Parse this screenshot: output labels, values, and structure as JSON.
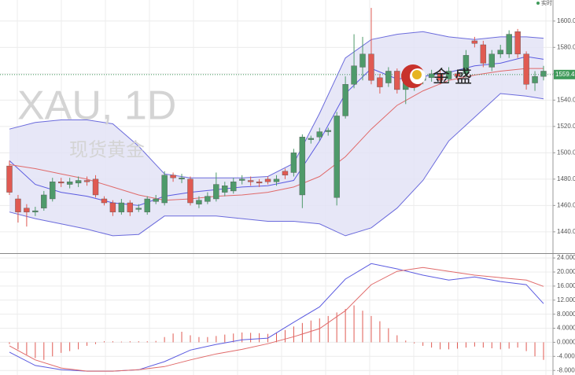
{
  "chart_data": [
    {
      "type": "candlestick",
      "title": "XAU, 1D",
      "subtitle": "现货黄金",
      "logo_text": "金 盛",
      "status": "实时",
      "up_color": "#4e9a6a",
      "down_color": "#e05a52",
      "open": [
        1490,
        1465,
        1458,
        1455,
        1458,
        1465,
        1478,
        1476,
        1477,
        1479,
        1480,
        1465,
        1462,
        1455,
        1462,
        1457,
        1455,
        1463,
        1462,
        1483,
        1480,
        1480,
        1461,
        1463,
        1465,
        1470,
        1471,
        1479,
        1479,
        1478,
        1480,
        1478,
        1486,
        1485,
        1468,
        1510,
        1512,
        1516,
        1466,
        1528,
        1552,
        1565,
        1575,
        1557,
        1553,
        1562,
        1548,
        1550,
        1555,
        1557,
        1560,
        1556,
        1560,
        1560,
        1585,
        1582,
        1565,
        1575,
        1575,
        1592,
        1575,
        1553,
        1558
      ],
      "high": [
        1494,
        1468,
        1461,
        1459,
        1471,
        1481,
        1481,
        1481,
        1482,
        1482,
        1483,
        1467,
        1464,
        1465,
        1464,
        1461,
        1467,
        1468,
        1486,
        1485,
        1484,
        1482,
        1467,
        1470,
        1485,
        1478,
        1481,
        1483,
        1482,
        1480,
        1482,
        1483,
        1488,
        1503,
        1514,
        1513,
        1519,
        1519,
        1531,
        1558,
        1590,
        1588,
        1610,
        1560,
        1565,
        1564,
        1558,
        1560,
        1562,
        1563,
        1563,
        1565,
        1562,
        1578,
        1588,
        1585,
        1578,
        1582,
        1593,
        1594,
        1577,
        1562,
        1566
      ],
      "low": [
        1468,
        1447,
        1444,
        1452,
        1456,
        1463,
        1474,
        1473,
        1474,
        1475,
        1466,
        1460,
        1452,
        1453,
        1452,
        1455,
        1453,
        1461,
        1460,
        1478,
        1477,
        1460,
        1458,
        1461,
        1463,
        1467,
        1469,
        1476,
        1475,
        1474,
        1476,
        1475,
        1480,
        1482,
        1458,
        1507,
        1509,
        1513,
        1460,
        1526,
        1549,
        1555,
        1552,
        1545,
        1550,
        1545,
        1537,
        1547,
        1552,
        1554,
        1552,
        1553,
        1555,
        1557,
        1580,
        1565,
        1562,
        1572,
        1572,
        1572,
        1548,
        1547,
        1555
      ],
      "close": [
        1470,
        1455,
        1455,
        1456,
        1468,
        1478,
        1477,
        1478,
        1479,
        1478,
        1468,
        1462,
        1455,
        1462,
        1455,
        1458,
        1465,
        1465,
        1483,
        1481,
        1481,
        1462,
        1464,
        1467,
        1476,
        1475,
        1478,
        1480,
        1478,
        1477,
        1478,
        1480,
        1483,
        1500,
        1512,
        1511,
        1516,
        1517,
        1528,
        1552,
        1566,
        1575,
        1555,
        1550,
        1562,
        1548,
        1555,
        1556,
        1558,
        1560,
        1555,
        1562,
        1558,
        1574,
        1583,
        1568,
        1575,
        1578,
        1590,
        1575,
        1552,
        1558,
        1562
      ],
      "band": {
        "color": "#6b6bdc",
        "fill": "#e3e3f6",
        "x": [
          0,
          3,
          6,
          9,
          12,
          15,
          18,
          21,
          24,
          27,
          30,
          33,
          36,
          39,
          42,
          45,
          48,
          51,
          54,
          57,
          60,
          62
        ],
        "upper": [
          1518,
          1523,
          1525,
          1525,
          1522,
          1505,
          1484,
          1481,
          1481,
          1481,
          1482,
          1492,
          1530,
          1572,
          1586,
          1590,
          1592,
          1588,
          1586,
          1588,
          1588,
          1587
        ],
        "lower": [
          1455,
          1450,
          1446,
          1442,
          1437,
          1438,
          1452,
          1452,
          1452,
          1450,
          1448,
          1448,
          1446,
          1437,
          1443,
          1458,
          1479,
          1509,
          1527,
          1545,
          1543,
          1541
        ]
      },
      "lines": [
        {
          "color": "#5b5be0",
          "x": [
            0,
            3,
            6,
            9,
            12,
            15,
            18,
            21,
            24,
            27,
            30,
            33,
            36,
            39,
            42,
            45,
            48,
            51,
            54,
            57,
            60,
            62
          ],
          "values": [
            1494,
            1476,
            1470,
            1467,
            1462,
            1460,
            1467,
            1470,
            1472,
            1474,
            1475,
            1479,
            1509,
            1545,
            1564,
            1556,
            1558,
            1561,
            1566,
            1568,
            1573,
            1571
          ]
        },
        {
          "color": "#e06a6a",
          "x": [
            0,
            3,
            6,
            9,
            12,
            15,
            18,
            21,
            24,
            27,
            30,
            33,
            36,
            39,
            42,
            45,
            48,
            51,
            54,
            57,
            60,
            62
          ],
          "values": [
            1491,
            1488,
            1484,
            1480,
            1474,
            1468,
            1464,
            1465,
            1467,
            1468,
            1470,
            1474,
            1482,
            1497,
            1518,
            1536,
            1547,
            1555,
            1559,
            1562,
            1564,
            1564
          ]
        }
      ],
      "last_price": {
        "value": 1559.4,
        "label": "1559.4",
        "color": "#3f9a5a"
      },
      "ylim": [
        1425,
        1616
      ],
      "yticks": [
        {
          "value": 1440,
          "label": "1440.0"
        },
        {
          "value": 1460,
          "label": "1460.0"
        },
        {
          "value": 1480,
          "label": "1480.0"
        },
        {
          "value": 1500,
          "label": "1500.0"
        },
        {
          "value": 1520,
          "label": "1520.0"
        },
        {
          "value": 1540,
          "label": "1540.0"
        },
        {
          "value": 1560,
          "label": "1560.0"
        },
        {
          "value": 1580,
          "label": "1580.0"
        },
        {
          "value": 1600,
          "label": "1600.0"
        }
      ],
      "grid": true
    },
    {
      "type": "macd",
      "hist_color": "#e05a52",
      "histogram": [
        -0.5,
        -2,
        -3.5,
        -4.5,
        -5,
        -4,
        -3,
        -2.5,
        -2,
        -1,
        -0.5,
        0.3,
        0.3,
        0.2,
        0.3,
        0.3,
        0.3,
        0.4,
        1.5,
        2.5,
        3,
        2,
        1.5,
        1.5,
        1.8,
        2.2,
        2.5,
        2.8,
        2.7,
        2.6,
        2.4,
        2.8,
        3.5,
        4.5,
        5.5,
        6.2,
        6.8,
        7.5,
        8.5,
        9.5,
        10.5,
        9,
        7.5,
        6,
        4,
        2,
        0.5,
        -0.3,
        -1,
        -1.5,
        -2,
        -2,
        -1.8,
        -1.5,
        -1.2,
        -1.5,
        -1.7,
        -2,
        -1.8,
        -1.5,
        -2.5,
        -4,
        -5
      ],
      "series": [
        {
          "color": "#5b5be0",
          "x": [
            0,
            3,
            6,
            9,
            12,
            15,
            18,
            21,
            24,
            27,
            30,
            33,
            36,
            39,
            42,
            45,
            48,
            51,
            54,
            57,
            60,
            62
          ],
          "values": [
            -2.8,
            -6.6,
            -7.8,
            -8.2,
            -8.2,
            -7.8,
            -5.5,
            -2.2,
            -0.6,
            0.7,
            1.2,
            5.7,
            10.1,
            18,
            22.4,
            20.9,
            19.1,
            17.7,
            18.6,
            17.3,
            16.4,
            11
          ]
        },
        {
          "color": "#e06a6a",
          "x": [
            0,
            3,
            6,
            9,
            12,
            15,
            18,
            21,
            24,
            27,
            30,
            33,
            36,
            39,
            42,
            45,
            48,
            51,
            54,
            57,
            60,
            62
          ],
          "values": [
            -1,
            -5,
            -7.3,
            -8.2,
            -8.2,
            -7.8,
            -6.9,
            -5,
            -3.3,
            -2,
            -0.4,
            1.6,
            3.9,
            9,
            16.4,
            20.2,
            21.3,
            20.2,
            19.1,
            18.4,
            17.7,
            15.9
          ]
        }
      ],
      "ylim": [
        -9.3,
        24.7
      ],
      "yticks": [
        {
          "value": -8,
          "label": "-8.000"
        },
        {
          "value": -4,
          "label": "-4.000"
        },
        {
          "value": 0,
          "label": "0.0000"
        },
        {
          "value": 4,
          "label": "4.0000"
        },
        {
          "value": 8,
          "label": "8.0000"
        },
        {
          "value": 12,
          "label": "12.000"
        },
        {
          "value": 16,
          "label": "16.000"
        },
        {
          "value": 20,
          "label": "20.000"
        },
        {
          "value": 24,
          "label": "24.000"
        }
      ],
      "grid": true
    }
  ]
}
